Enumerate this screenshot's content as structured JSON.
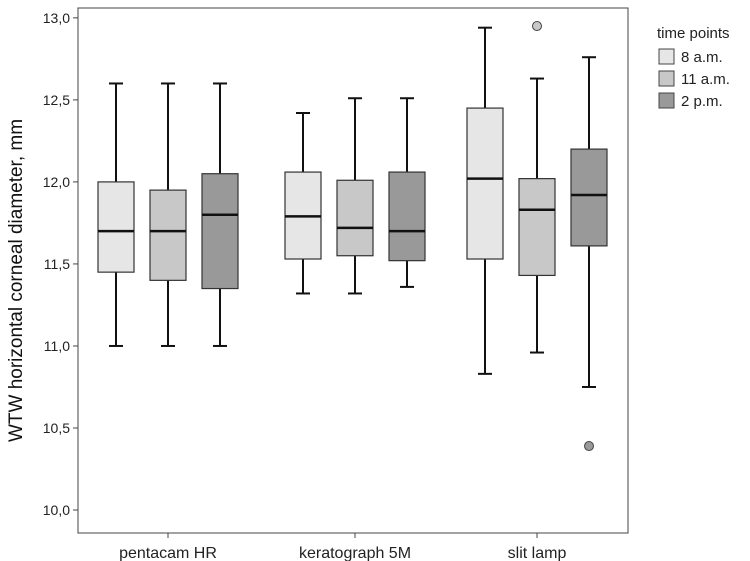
{
  "chart_data": {
    "type": "boxplot",
    "ylabel": "WTW horizontal corneal diameter, mm",
    "ylim": [
      10.0,
      13.0
    ],
    "yticks": [
      "10,0",
      "10,5",
      "11,0",
      "11,5",
      "12,0",
      "12,5",
      "13,0"
    ],
    "ytick_values": [
      10.0,
      10.5,
      11.0,
      11.5,
      12.0,
      12.5,
      13.0
    ],
    "categories": [
      "pentacam HR",
      "keratograph 5M",
      "slit lamp"
    ],
    "legend": {
      "title": "time points",
      "position": "right"
    },
    "series": [
      {
        "name": "8 a.m.",
        "color": "#e6e6e6",
        "boxes": [
          {
            "min": 11.0,
            "q1": 11.45,
            "median": 11.7,
            "q3": 12.0,
            "max": 12.6,
            "outliers": []
          },
          {
            "min": 11.32,
            "q1": 11.53,
            "median": 11.79,
            "q3": 12.06,
            "max": 12.42,
            "outliers": []
          },
          {
            "min": 10.83,
            "q1": 11.53,
            "median": 12.02,
            "q3": 12.45,
            "max": 12.94,
            "outliers": []
          }
        ]
      },
      {
        "name": "11 a.m.",
        "color": "#c8c8c8",
        "boxes": [
          {
            "min": 11.0,
            "q1": 11.4,
            "median": 11.7,
            "q3": 11.95,
            "max": 12.6,
            "outliers": []
          },
          {
            "min": 11.32,
            "q1": 11.55,
            "median": 11.72,
            "q3": 12.01,
            "max": 12.51,
            "outliers": []
          },
          {
            "min": 10.96,
            "q1": 11.43,
            "median": 11.83,
            "q3": 12.02,
            "max": 12.63,
            "outliers": [
              12.95
            ]
          }
        ]
      },
      {
        "name": "2 p.m.",
        "color": "#999999",
        "boxes": [
          {
            "min": 11.0,
            "q1": 11.35,
            "median": 11.8,
            "q3": 12.05,
            "max": 12.6,
            "outliers": []
          },
          {
            "min": 11.36,
            "q1": 11.52,
            "median": 11.7,
            "q3": 12.06,
            "max": 12.51,
            "outliers": []
          },
          {
            "min": 10.75,
            "q1": 11.61,
            "median": 11.92,
            "q3": 12.2,
            "max": 12.76,
            "outliers": [
              10.39
            ]
          }
        ]
      }
    ]
  }
}
